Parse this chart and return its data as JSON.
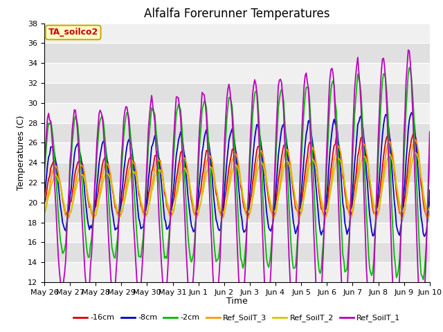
{
  "title": "Alfalfa Forerunner Temperatures",
  "xlabel": "Time",
  "ylabel": "Temperatures (C)",
  "ylim": [
    12,
    38
  ],
  "annotation": "TA_soilco2",
  "legend_labels": [
    "-16cm",
    "-8cm",
    "-2cm",
    "Ref_SoilT_3",
    "Ref_SoilT_2",
    "Ref_SoilT_1"
  ],
  "line_colors": [
    "#dd0000",
    "#0000cc",
    "#00bb00",
    "#ff9900",
    "#cccc00",
    "#bb00bb"
  ],
  "xtick_labels": [
    "May 26",
    "May 27",
    "May 28",
    "May 29",
    "May 30",
    "May 31",
    "Jun 1",
    "Jun 2",
    "Jun 3",
    "Jun 4",
    "Jun 5",
    "Jun 6",
    "Jun 7",
    "Jun 8",
    "Jun 9",
    "Jun 10"
  ],
  "background_color": "#ffffff",
  "band_light": "#f0f0f0",
  "band_dark": "#e0e0e0",
  "title_fontsize": 12,
  "axis_fontsize": 9,
  "tick_fontsize": 8
}
